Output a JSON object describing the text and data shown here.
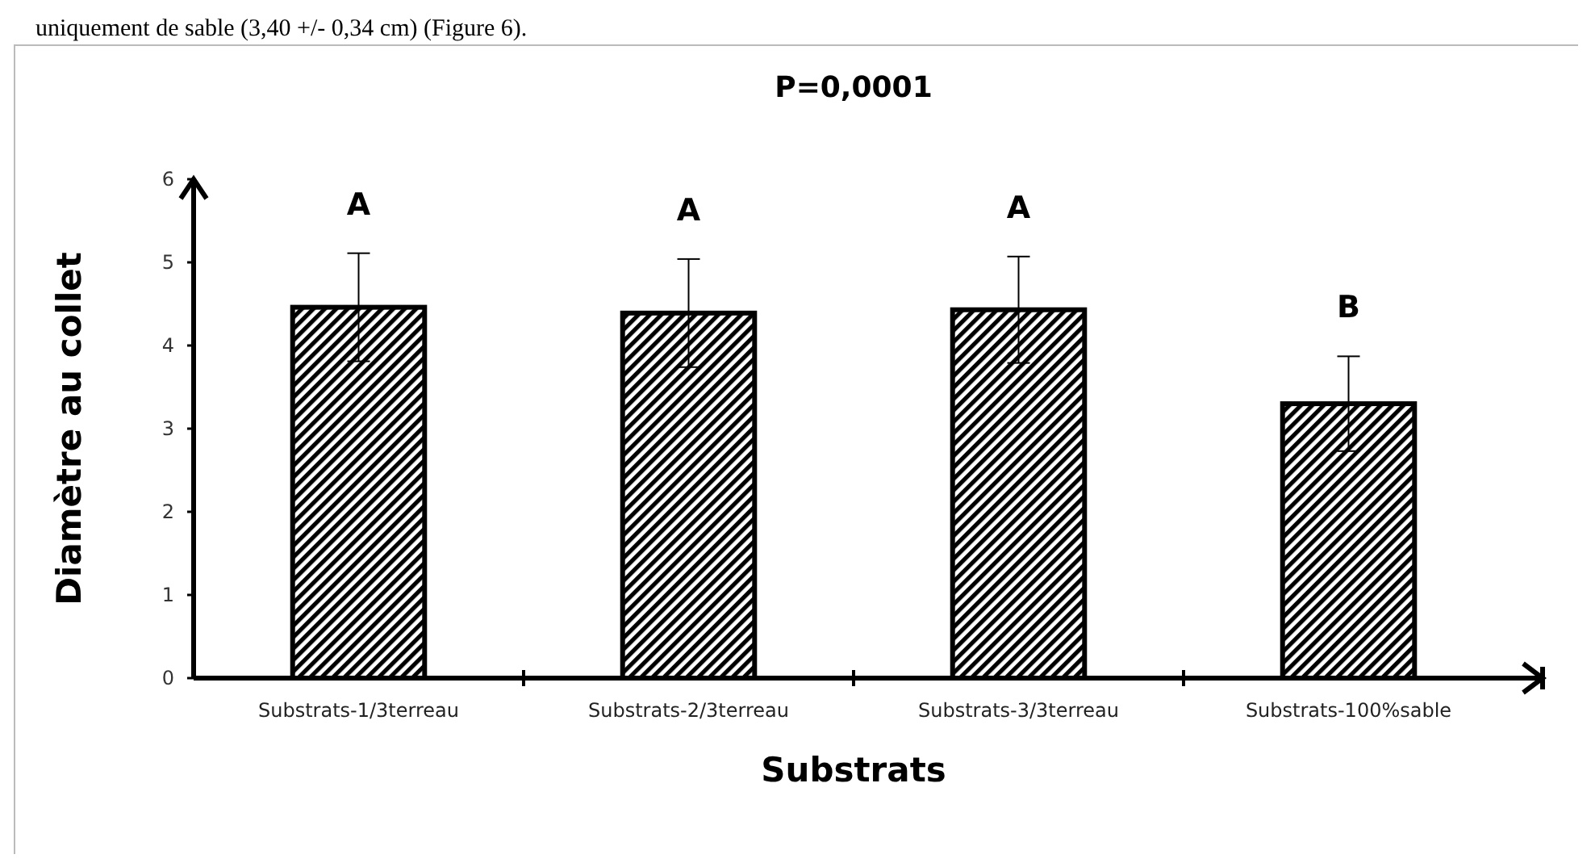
{
  "chart_data": {
    "type": "bar",
    "title": "P=0,0001",
    "xlabel": "Substrats",
    "ylabel": "Diamètre au collet",
    "categories": [
      "Substrats-1/3terreau",
      "Substrats-2/3terreau",
      "Substrats-3/3terreau",
      "Substrats-100%sable"
    ],
    "values": [
      4.46,
      4.39,
      4.43,
      3.3
    ],
    "errors": [
      0.65,
      0.65,
      0.64,
      0.57
    ],
    "color": "#000000",
    "ylim": [
      0,
      6
    ],
    "yticks": [
      0,
      1,
      2,
      3,
      4,
      5,
      6
    ],
    "grid": false,
    "annotations": [
      "uniquement de sable (3,40 +/- 0,34 cm) (Figure 6).",
      "A",
      "A",
      "A",
      "B"
    ]
  }
}
